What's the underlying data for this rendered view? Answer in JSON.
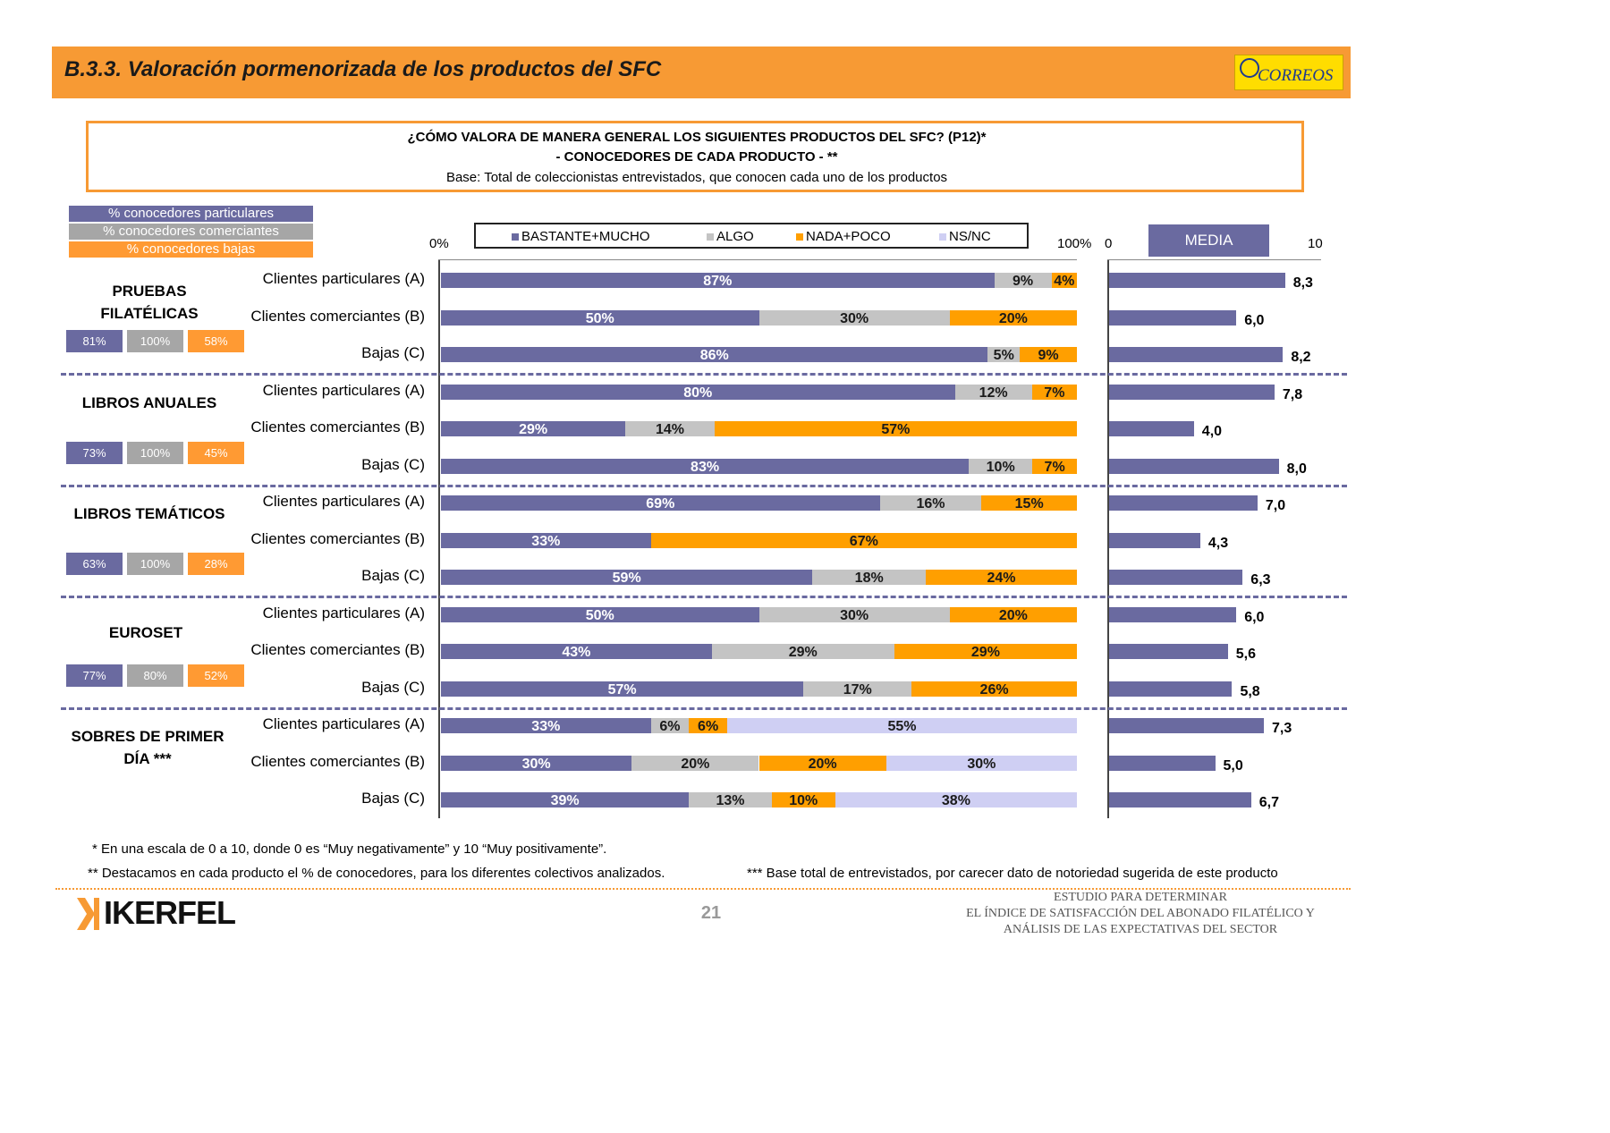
{
  "header": {
    "title": "B.3.3. Valoración pormenorizada de los productos del SFC",
    "logo_text": "CORREOS"
  },
  "question": {
    "line1": "¿CÓMO VALORA DE MANERA GENERAL LOS SIGUIENTES PRODUCTOS DEL SFC? (P12)*",
    "line2": "- CONOCEDORES DE CADA PRODUCTO - **",
    "line3": "Base: Total de coleccionistas entrevistados, que conocen cada uno de los productos"
  },
  "awareness_legend": {
    "particulares": "% conocedores particulares",
    "comerciantes": "% conocedores comerciantes",
    "bajas": "% conocedores bajas"
  },
  "colors": {
    "bastante": "#6A6AA0",
    "algo": "#C4C4C4",
    "nada": "#FF9F00",
    "nsnc": "#CFCFF3",
    "chip_particulares": "#6A6AA0",
    "chip_comerciantes": "#A6A6A6",
    "chip_bajas": "#FF9A33"
  },
  "axis": {
    "left_min": "0%",
    "left_max": "100%",
    "media_min": "0",
    "media_max": "10",
    "media_title": "MEDIA"
  },
  "chart_data": {
    "type": "bar",
    "stacked": true,
    "orientation": "horizontal",
    "legend": [
      "BASTANTE+MUCHO",
      "ALGO",
      "NADA+POCO",
      "NS/NC"
    ],
    "media_axis": [
      0,
      10
    ],
    "groups": [
      {
        "name": "PRUEBAS FILATÉLICAS",
        "awareness": [
          "81%",
          "100%",
          "58%"
        ],
        "rows": [
          {
            "label": "Clientes particulares (A)",
            "values": [
              87,
              9,
              4,
              0
            ],
            "media": 8.3,
            "media_label": "8,3"
          },
          {
            "label": "Clientes comerciantes (B)",
            "values": [
              50,
              30,
              20,
              0
            ],
            "media": 6.0,
            "media_label": "6,0"
          },
          {
            "label": "Bajas (C)",
            "values": [
              86,
              5,
              9,
              0
            ],
            "media": 8.2,
            "media_label": "8,2"
          }
        ]
      },
      {
        "name": "LIBROS ANUALES",
        "awareness": [
          "73%",
          "100%",
          "45%"
        ],
        "rows": [
          {
            "label": "Clientes particulares (A)",
            "values": [
              80,
              12,
              7,
              0
            ],
            "media": 7.8,
            "media_label": "7,8"
          },
          {
            "label": "Clientes comerciantes (B)",
            "values": [
              29,
              14,
              57,
              0
            ],
            "media": 4.0,
            "media_label": "4,0"
          },
          {
            "label": "Bajas (C)",
            "values": [
              83,
              10,
              7,
              0
            ],
            "media": 8.0,
            "media_label": "8,0"
          }
        ]
      },
      {
        "name": "LIBROS TEMÁTICOS",
        "awareness": [
          "63%",
          "100%",
          "28%"
        ],
        "rows": [
          {
            "label": "Clientes particulares (A)",
            "values": [
              69,
              16,
              15,
              0
            ],
            "media": 7.0,
            "media_label": "7,0"
          },
          {
            "label": "Clientes comerciantes (B)",
            "values": [
              33,
              0,
              67,
              0
            ],
            "media": 4.3,
            "media_label": "4,3"
          },
          {
            "label": "Bajas (C)",
            "values": [
              59,
              18,
              24,
              0
            ],
            "media": 6.3,
            "media_label": "6,3"
          }
        ]
      },
      {
        "name": "EUROSET",
        "awareness": [
          "77%",
          "80%",
          "52%"
        ],
        "rows": [
          {
            "label": "Clientes particulares (A)",
            "values": [
              50,
              30,
              20,
              0
            ],
            "media": 6.0,
            "media_label": "6,0"
          },
          {
            "label": "Clientes comerciantes (B)",
            "values": [
              43,
              29,
              29,
              0
            ],
            "media": 5.6,
            "media_label": "5,6"
          },
          {
            "label": "Bajas (C)",
            "values": [
              57,
              17,
              26,
              0
            ],
            "media": 5.8,
            "media_label": "5,8"
          }
        ]
      },
      {
        "name": "SOBRES DE PRIMER DÍA ***",
        "awareness": [],
        "rows": [
          {
            "label": "Clientes particulares (A)",
            "values": [
              33,
              6,
              6,
              55
            ],
            "media": 7.3,
            "media_label": "7,3"
          },
          {
            "label": "Clientes comerciantes (B)",
            "values": [
              30,
              20,
              20,
              30
            ],
            "media": 5.0,
            "media_label": "5,0"
          },
          {
            "label": "Bajas (C)",
            "values": [
              39,
              13,
              10,
              38
            ],
            "media": 6.7,
            "media_label": "6,7"
          }
        ]
      }
    ]
  },
  "footnotes": {
    "f1": "* En una escala de 0 a 10, donde 0 es “Muy negativamente” y 10 “Muy positivamente”.",
    "f2": "** Destacamos en cada producto el % de conocedores, para los diferentes colectivos analizados.",
    "f3": "*** Base total de entrevistados, por carecer dato de notoriedad sugerida de este producto"
  },
  "footer": {
    "page": "21",
    "brand": "IKERFEL",
    "study1": "ESTUDIO PARA DETERMINAR",
    "study2": "EL ÍNDICE DE SATISFACCIÓN DEL ABONADO FILATÉLICO Y",
    "study3": "ANÁLISIS DE LAS EXPECTATIVAS DEL SECTOR"
  }
}
